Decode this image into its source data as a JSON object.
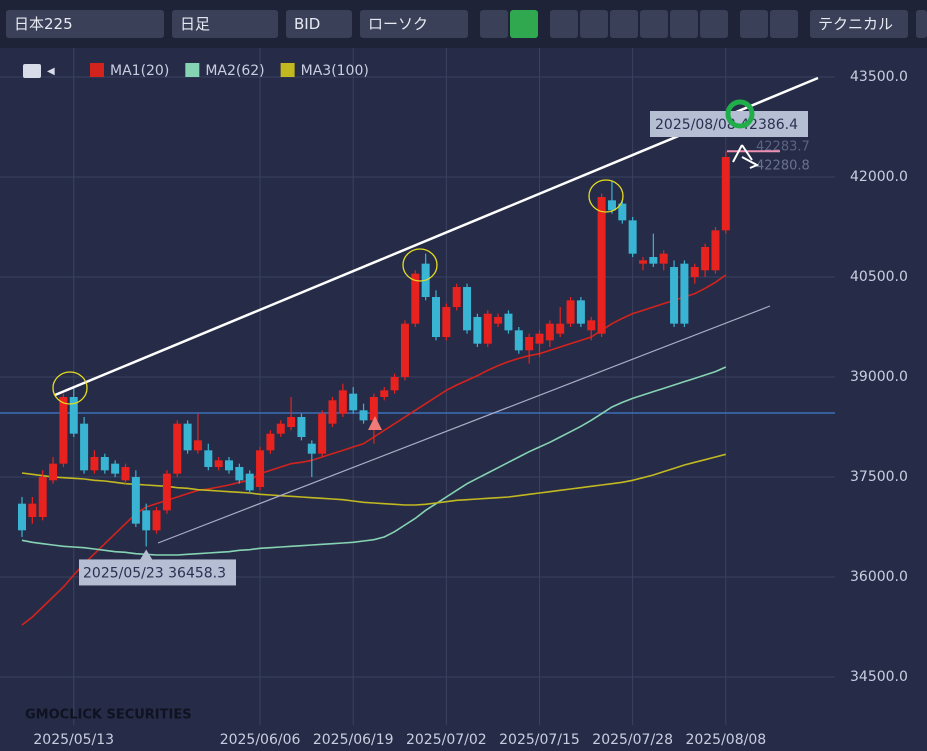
{
  "toolbar": {
    "symbol": "日本225",
    "period": "日足",
    "side": "BID",
    "style": "ローソク",
    "technical": "テクニカル"
  },
  "watermark": "GMOCLICK SECURITIES",
  "chart_data": {
    "type": "candlestick",
    "categories": [
      null,
      null,
      null,
      null,
      null,
      "2025/05/13",
      null,
      null,
      null,
      null,
      null,
      null,
      null,
      null,
      null,
      null,
      null,
      null,
      null,
      null,
      null,
      null,
      null,
      "2025/06/06",
      null,
      null,
      null,
      null,
      null,
      null,
      null,
      null,
      "2025/06/19",
      null,
      null,
      null,
      null,
      null,
      null,
      null,
      null,
      "2025/07/02",
      null,
      null,
      null,
      null,
      null,
      null,
      null,
      null,
      "2025/07/15",
      null,
      null,
      null,
      null,
      null,
      null,
      null,
      null,
      "2025/07/28",
      null,
      null,
      null,
      null,
      null,
      null,
      null,
      null,
      "2025/08/08"
    ],
    "candles": [
      [
        37100,
        37200,
        36600,
        36700
      ],
      [
        36900,
        37200,
        36800,
        37100
      ],
      [
        36900,
        37600,
        36850,
        37500
      ],
      [
        37450,
        37800,
        37400,
        37700
      ],
      [
        37700,
        38750,
        37650,
        38700
      ],
      [
        38700,
        38850,
        38100,
        38150
      ],
      [
        38300,
        38400,
        37550,
        37600
      ],
      [
        37600,
        37900,
        37550,
        37800
      ],
      [
        37800,
        37850,
        37550,
        37600
      ],
      [
        37700,
        37750,
        37500,
        37550
      ],
      [
        37450,
        37700,
        37400,
        37650
      ],
      [
        37500,
        37600,
        36750,
        36800
      ],
      [
        37000,
        37100,
        36458.3,
        36700
      ],
      [
        36700,
        37050,
        36650,
        37000
      ],
      [
        37000,
        37600,
        36950,
        37550
      ],
      [
        37550,
        38350,
        37500,
        38300
      ],
      [
        38300,
        38350,
        37850,
        37900
      ],
      [
        37900,
        38450,
        37850,
        38050
      ],
      [
        37900,
        38000,
        37600,
        37650
      ],
      [
        37650,
        37800,
        37600,
        37750
      ],
      [
        37750,
        37800,
        37550,
        37600
      ],
      [
        37650,
        37700,
        37400,
        37450
      ],
      [
        37550,
        37600,
        37250,
        37300
      ],
      [
        37350,
        37950,
        37300,
        37900
      ],
      [
        37900,
        38200,
        37850,
        38150
      ],
      [
        38150,
        38350,
        38100,
        38300
      ],
      [
        38250,
        38700,
        38200,
        38400
      ],
      [
        38400,
        38450,
        38050,
        38100
      ],
      [
        38000,
        38050,
        37500,
        37850
      ],
      [
        37850,
        38500,
        37800,
        38450
      ],
      [
        38300,
        38700,
        38250,
        38650
      ],
      [
        38450,
        38900,
        38400,
        38800
      ],
      [
        38750,
        38850,
        38450,
        38500
      ],
      [
        38500,
        38600,
        38300,
        38350
      ],
      [
        38350,
        38750,
        38000,
        38700
      ],
      [
        38700,
        38850,
        38650,
        38800
      ],
      [
        38800,
        39050,
        38750,
        39000
      ],
      [
        39000,
        39850,
        38950,
        39800
      ],
      [
        39800,
        40600,
        39750,
        40550
      ],
      [
        40700,
        40850,
        40150,
        40200
      ],
      [
        40200,
        40300,
        39550,
        39600
      ],
      [
        39600,
        40100,
        39550,
        40050
      ],
      [
        40050,
        40400,
        40000,
        40350
      ],
      [
        40350,
        40400,
        39650,
        39700
      ],
      [
        39900,
        39950,
        39450,
        39500
      ],
      [
        39500,
        40000,
        39450,
        39950
      ],
      [
        39800,
        39950,
        39750,
        39900
      ],
      [
        39950,
        40000,
        39650,
        39700
      ],
      [
        39700,
        39750,
        39350,
        39400
      ],
      [
        39400,
        39650,
        39200,
        39600
      ],
      [
        39500,
        39700,
        39300,
        39650
      ],
      [
        39550,
        39850,
        39450,
        39800
      ],
      [
        39650,
        40050,
        39600,
        39800
      ],
      [
        39800,
        40200,
        39750,
        40150
      ],
      [
        40150,
        40200,
        39750,
        39800
      ],
      [
        39700,
        39900,
        39550,
        39850
      ],
      [
        39650,
        41750,
        39600,
        41700
      ],
      [
        41650,
        41950,
        41450,
        41500
      ],
      [
        41600,
        41650,
        41300,
        41350
      ],
      [
        41350,
        41400,
        40800,
        40850
      ],
      [
        40700,
        40800,
        40600,
        40750
      ],
      [
        40800,
        41150,
        40650,
        40700
      ],
      [
        40700,
        40900,
        40600,
        40850
      ],
      [
        40650,
        40750,
        39750,
        39800
      ],
      [
        40700,
        40750,
        39750,
        39800
      ],
      [
        40500,
        40700,
        40400,
        40650
      ],
      [
        40600,
        41000,
        40500,
        40950
      ],
      [
        40600,
        41250,
        40550,
        41200
      ],
      [
        41200,
        42386.4,
        41150,
        42300
      ]
    ],
    "up_color": "#e8221e",
    "down_color": "#3ab4d3",
    "series": [
      {
        "name": "MA1(20)",
        "color": "#d4221c",
        "values": [
          35280,
          35400,
          35550,
          35700,
          35850,
          36030,
          36200,
          36350,
          36500,
          36650,
          36800,
          36950,
          37050,
          37100,
          37150,
          37200,
          37250,
          37300,
          37320,
          37350,
          37380,
          37420,
          37450,
          37550,
          37600,
          37650,
          37700,
          37720,
          37750,
          37800,
          37850,
          37900,
          37950,
          38000,
          38100,
          38200,
          38300,
          38400,
          38500,
          38600,
          38700,
          38800,
          38880,
          38950,
          39020,
          39100,
          39170,
          39230,
          39280,
          39320,
          39350,
          39400,
          39450,
          39500,
          39550,
          39600,
          39700,
          39800,
          39880,
          39950,
          40000,
          40050,
          40100,
          40150,
          40200,
          40250,
          40330,
          40420,
          40530
        ]
      },
      {
        "name": "MA2(62)",
        "color": "#86d3b4",
        "values": [
          36550,
          36520,
          36500,
          36480,
          36460,
          36450,
          36440,
          36420,
          36400,
          36380,
          36370,
          36350,
          36340,
          36330,
          36330,
          36330,
          36340,
          36350,
          36360,
          36370,
          36380,
          36400,
          36410,
          36430,
          36440,
          36450,
          36460,
          36470,
          36480,
          36490,
          36500,
          36510,
          36520,
          36540,
          36560,
          36600,
          36680,
          36780,
          36880,
          37000,
          37100,
          37200,
          37300,
          37400,
          37480,
          37560,
          37640,
          37720,
          37800,
          37880,
          37950,
          38020,
          38100,
          38180,
          38260,
          38350,
          38450,
          38550,
          38620,
          38680,
          38730,
          38780,
          38830,
          38880,
          38930,
          38980,
          39030,
          39080,
          39150
        ]
      },
      {
        "name": "MA3(100)",
        "color": "#c2b820",
        "values": [
          37560,
          37540,
          37520,
          37500,
          37490,
          37480,
          37470,
          37450,
          37440,
          37420,
          37400,
          37390,
          37380,
          37370,
          37360,
          37340,
          37330,
          37310,
          37300,
          37290,
          37280,
          37270,
          37260,
          37240,
          37230,
          37220,
          37210,
          37200,
          37190,
          37180,
          37170,
          37160,
          37140,
          37120,
          37110,
          37100,
          37090,
          37080,
          37080,
          37090,
          37110,
          37130,
          37150,
          37160,
          37170,
          37180,
          37190,
          37200,
          37220,
          37240,
          37260,
          37280,
          37300,
          37320,
          37340,
          37360,
          37380,
          37400,
          37420,
          37450,
          37490,
          37530,
          37580,
          37630,
          37680,
          37720,
          37760,
          37800,
          37840
        ]
      }
    ],
    "hline": 38460,
    "low_label": "2025/05/23 36458.3",
    "high_label": "2025/08/08 42386.4",
    "price_tags": [
      "42283.7",
      "42280.8"
    ],
    "ylim": [
      33900,
      44100
    ],
    "yticks": [
      {
        "value": 34500,
        "label": "34500.0"
      },
      {
        "value": 36000,
        "label": "36000.0"
      },
      {
        "value": 37500,
        "label": "37500.0"
      },
      {
        "value": 39000,
        "label": "39000.0"
      },
      {
        "value": 40500,
        "label": "40500.0"
      },
      {
        "value": 42000,
        "label": "42000.0"
      },
      {
        "value": 43500,
        "label": "43500.0"
      }
    ],
    "grid": true
  }
}
